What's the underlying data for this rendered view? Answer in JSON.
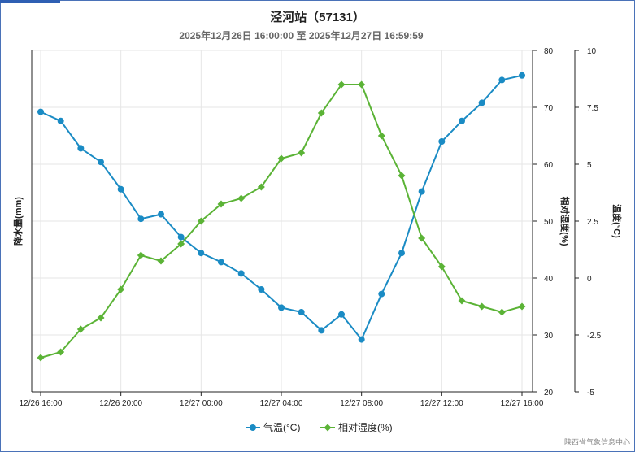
{
  "header": {
    "title": "泾河站（57131）",
    "subtitle": "2025年12月26日 16:00:00 至 2025年12月27日 16:59:59"
  },
  "footer": {
    "credit": "陕西省气象信息中心"
  },
  "colors": {
    "temperature": "#1a8bc4",
    "humidity": "#5bb336",
    "grid": "#e6e6e6",
    "frame": "#4a72b8"
  },
  "chart_data": {
    "type": "line",
    "x": [
      "12/26 16:00",
      "12/26 17:00",
      "12/26 18:00",
      "12/26 19:00",
      "12/26 20:00",
      "12/26 21:00",
      "12/26 22:00",
      "12/26 23:00",
      "12/27 00:00",
      "12/27 01:00",
      "12/27 02:00",
      "12/27 03:00",
      "12/27 04:00",
      "12/27 05:00",
      "12/27 06:00",
      "12/27 07:00",
      "12/27 08:00",
      "12/27 09:00",
      "12/27 10:00",
      "12/27 11:00",
      "12/27 12:00",
      "12/27 13:00",
      "12/27 14:00",
      "12/27 15:00",
      "12/27 16:00"
    ],
    "x_tick_labels": [
      "12/26 16:00",
      "12/26 20:00",
      "12/27 00:00",
      "12/27 04:00",
      "12/27 08:00",
      "12/27 12:00",
      "12/27 16:00"
    ],
    "series": [
      {
        "name": "气温(°C)",
        "axis": "temperature",
        "marker": "circle",
        "values": [
          7.3,
          6.9,
          5.7,
          5.1,
          3.9,
          2.6,
          2.8,
          1.8,
          1.1,
          0.7,
          0.2,
          -0.5,
          -1.3,
          -1.5,
          -2.3,
          -1.6,
          -2.7,
          -0.7,
          1.1,
          3.8,
          6.0,
          6.9,
          7.7,
          8.7,
          8.9
        ]
      },
      {
        "name": "相对湿度(%)",
        "axis": "humidity",
        "marker": "diamond",
        "values": [
          26,
          27,
          31,
          33,
          38,
          44,
          43,
          46,
          50,
          53,
          54,
          56,
          61,
          62,
          69,
          74,
          74,
          65,
          58,
          47,
          42,
          36,
          35,
          34,
          35
        ]
      }
    ],
    "axes": {
      "precip": {
        "label": "降水量(mm)"
      },
      "humidity": {
        "label": "相对湿度(%)",
        "ticks": [
          20,
          30,
          40,
          50,
          60,
          70,
          80
        ],
        "range": [
          20,
          80
        ]
      },
      "temperature": {
        "label": "温度(°C)",
        "ticks": [
          "-5",
          "-2.5",
          "0",
          "2.5",
          "5",
          "7.5",
          "10"
        ],
        "range": [
          -5,
          10
        ]
      }
    },
    "grid": true,
    "legend": "bottom-center"
  }
}
